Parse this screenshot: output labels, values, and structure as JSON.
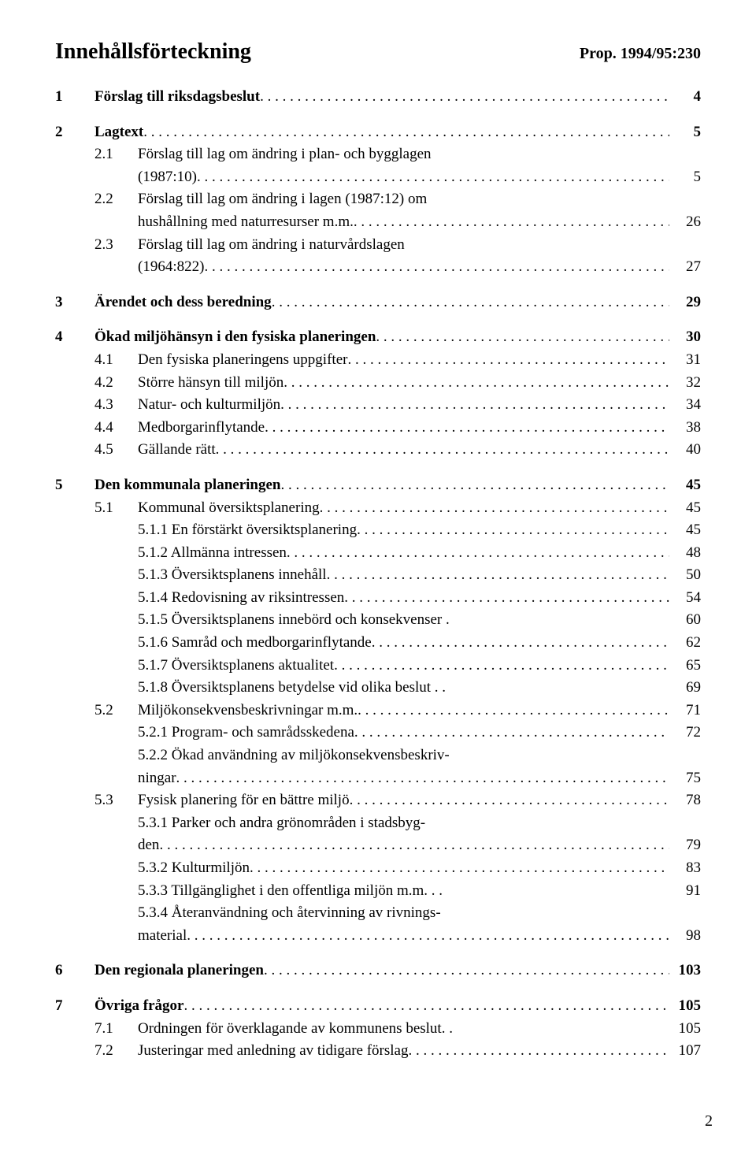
{
  "header": {
    "title": "Innehållsförteckning",
    "prop": "Prop. 1994/95:230"
  },
  "toc": [
    {
      "num": "1",
      "label": "Förslag till riksdagsbeslut",
      "page": "4",
      "level": 0,
      "bold": true,
      "gapBefore": false
    },
    {
      "num": "2",
      "label": "Lagtext",
      "page": "5",
      "level": 0,
      "bold": true,
      "gapBefore": true
    },
    {
      "num": "2.1",
      "label": "Förslag till lag om ändring i plan- och bygglagen",
      "label2": "(1987:10)",
      "page": "5",
      "level": 1
    },
    {
      "num": "2.2",
      "label": "Förslag till lag om ändring i lagen (1987:12) om",
      "label2": "hushållning med naturresurser m.m.",
      "page": "26",
      "level": 1
    },
    {
      "num": "2.3",
      "label": "Förslag till lag om ändring i naturvårdslagen",
      "label2": "(1964:822)",
      "page": "27",
      "level": 1
    },
    {
      "num": "3",
      "label": "Ärendet och dess beredning",
      "page": "29",
      "level": 0,
      "bold": true,
      "gapBefore": true
    },
    {
      "num": "4",
      "label": "Ökad miljöhänsyn i den fysiska planeringen",
      "page": "30",
      "level": 0,
      "bold": true,
      "gapBefore": true
    },
    {
      "num": "4.1",
      "label": "Den fysiska planeringens uppgifter",
      "page": "31",
      "level": 1
    },
    {
      "num": "4.2",
      "label": "Större hänsyn till miljön",
      "page": "32",
      "level": 1
    },
    {
      "num": "4.3",
      "label": "Natur- och kulturmiljön",
      "page": "34",
      "level": 1
    },
    {
      "num": "4.4",
      "label": "Medborgarinflytande",
      "page": "38",
      "level": 1
    },
    {
      "num": "4.5",
      "label": "Gällande rätt",
      "page": "40",
      "level": 1
    },
    {
      "num": "5",
      "label": "Den kommunala planeringen",
      "page": "45",
      "level": 0,
      "bold": true,
      "gapBefore": true
    },
    {
      "num": "5.1",
      "label": "Kommunal översiktsplanering",
      "page": "45",
      "level": 1
    },
    {
      "num": "5.1.1",
      "label": "En förstärkt översiktsplanering",
      "page": "45",
      "level": 2
    },
    {
      "num": "5.1.2",
      "label": "Allmänna intressen",
      "page": "48",
      "level": 2
    },
    {
      "num": "5.1.3",
      "label": "Översiktsplanens innehåll",
      "page": "50",
      "level": 2
    },
    {
      "num": "5.1.4",
      "label": "Redovisning av riksintressen",
      "page": "54",
      "level": 2
    },
    {
      "num": "5.1.5",
      "label": "Översiktsplanens innebörd och konsekvenser .",
      "page": "60",
      "level": 2,
      "noDots": true
    },
    {
      "num": "5.1.6",
      "label": "Samråd och medborgarinflytande",
      "page": "62",
      "level": 2
    },
    {
      "num": "5.1.7",
      "label": "Översiktsplanens aktualitet",
      "page": "65",
      "level": 2
    },
    {
      "num": "5.1.8",
      "label": "Översiktsplanens betydelse vid olika beslut . .",
      "page": "69",
      "level": 2,
      "noDots": true
    },
    {
      "num": "5.2",
      "label": "Miljökonsekvensbeskrivningar m.m.",
      "page": "71",
      "level": 1
    },
    {
      "num": "5.2.1",
      "label": "Program- och samrådsskedena",
      "page": "72",
      "level": 2
    },
    {
      "num": "5.2.2",
      "label": "Ökad användning av miljökonsekvensbeskriv-",
      "label2": "ningar",
      "page": "75",
      "level": 2
    },
    {
      "num": "5.3",
      "label": "Fysisk planering för en bättre miljö",
      "page": "78",
      "level": 1
    },
    {
      "num": "5.3.1",
      "label": "Parker och andra grönområden i stadsbyg-",
      "label2": "den",
      "page": "79",
      "level": 2
    },
    {
      "num": "5.3.2",
      "label": "Kulturmiljön",
      "page": "83",
      "level": 2
    },
    {
      "num": "5.3.3",
      "label": "Tillgänglighet i den offentliga miljön m.m. . .",
      "page": "91",
      "level": 2,
      "noDots": true
    },
    {
      "num": "5.3.4",
      "label": "Återanvändning och återvinning av rivnings-",
      "label2": "material",
      "page": "98",
      "level": 2
    },
    {
      "num": "6",
      "label": "Den regionala planeringen",
      "page": "103",
      "level": 0,
      "bold": true,
      "gapBefore": true
    },
    {
      "num": "7",
      "label": "Övriga frågor",
      "page": "105",
      "level": 0,
      "bold": true,
      "gapBefore": true
    },
    {
      "num": "7.1",
      "label": "Ordningen för överklagande av kommunens beslut. .",
      "page": "105",
      "level": 1,
      "noDots": true
    },
    {
      "num": "7.2",
      "label": "Justeringar med anledning av tidigare förslag",
      "page": "107",
      "level": 1
    }
  ],
  "footer": {
    "pageNumber": "2"
  }
}
